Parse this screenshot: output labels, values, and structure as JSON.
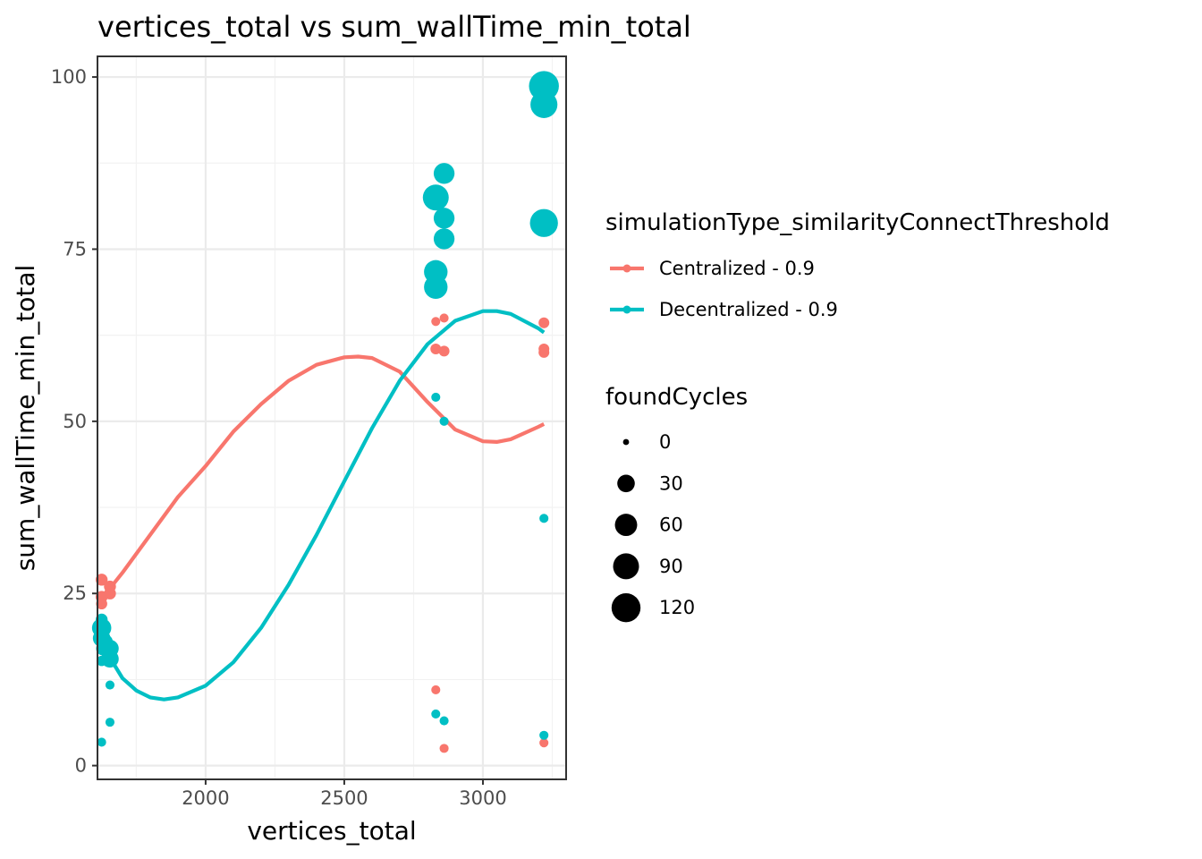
{
  "chart_data": {
    "type": "scatter",
    "title": "vertices_total  vs  sum_wallTime_min_total",
    "xlabel": "vertices_total",
    "ylabel": "sum_wallTime_min_total",
    "xlim": [
      1610,
      3300
    ],
    "ylim": [
      -2,
      103
    ],
    "x_ticks": [
      2000,
      2500,
      3000
    ],
    "y_ticks": [
      0,
      25,
      50,
      75,
      100
    ],
    "grid": true,
    "legend_position": "right",
    "color_legend_title": "simulationType_similarityConnectThreshold",
    "size_legend_title": "foundCycles",
    "size_legend": [
      {
        "value": 0,
        "label": "0"
      },
      {
        "value": 30,
        "label": "30"
      },
      {
        "value": 60,
        "label": "60"
      },
      {
        "value": 90,
        "label": "90"
      },
      {
        "value": 120,
        "label": "120"
      }
    ],
    "series": [
      {
        "name": "Centralized - 0.9",
        "color": "#F8766D",
        "points": [
          {
            "x": 1625,
            "y": 27.0,
            "size": 8
          },
          {
            "x": 1625,
            "y": 24.5,
            "size": 8
          },
          {
            "x": 1625,
            "y": 23.5,
            "size": 6
          },
          {
            "x": 1625,
            "y": 21.0,
            "size": 6
          },
          {
            "x": 1655,
            "y": 26.0,
            "size": 8
          },
          {
            "x": 1655,
            "y": 25.0,
            "size": 8
          },
          {
            "x": 2830,
            "y": 64.5,
            "size": 2
          },
          {
            "x": 2860,
            "y": 65.0,
            "size": 2
          },
          {
            "x": 2830,
            "y": 60.5,
            "size": 5
          },
          {
            "x": 2860,
            "y": 60.2,
            "size": 5
          },
          {
            "x": 2830,
            "y": 11.0,
            "size": 2
          },
          {
            "x": 2860,
            "y": 2.5,
            "size": 2
          },
          {
            "x": 3220,
            "y": 64.3,
            "size": 5
          },
          {
            "x": 3220,
            "y": 60.5,
            "size": 5
          },
          {
            "x": 3220,
            "y": 60.0,
            "size": 5
          },
          {
            "x": 3220,
            "y": 3.3,
            "size": 2
          }
        ],
        "trend": [
          {
            "x": 1650,
            "y": 25.5
          },
          {
            "x": 1700,
            "y": 28.0
          },
          {
            "x": 1800,
            "y": 33.5
          },
          {
            "x": 1900,
            "y": 39.0
          },
          {
            "x": 2000,
            "y": 43.5
          },
          {
            "x": 2100,
            "y": 48.5
          },
          {
            "x": 2200,
            "y": 52.5
          },
          {
            "x": 2300,
            "y": 55.9
          },
          {
            "x": 2400,
            "y": 58.2
          },
          {
            "x": 2500,
            "y": 59.3
          },
          {
            "x": 2550,
            "y": 59.4
          },
          {
            "x": 2600,
            "y": 59.2
          },
          {
            "x": 2700,
            "y": 57.2
          },
          {
            "x": 2800,
            "y": 52.8
          },
          {
            "x": 2900,
            "y": 48.8
          },
          {
            "x": 3000,
            "y": 47.1
          },
          {
            "x": 3050,
            "y": 47.0
          },
          {
            "x": 3100,
            "y": 47.4
          },
          {
            "x": 3200,
            "y": 49.2
          },
          {
            "x": 3220,
            "y": 49.6
          }
        ]
      },
      {
        "name": "Decentralized - 0.9",
        "color": "#00BFC4",
        "points": [
          {
            "x": 1625,
            "y": 21.2,
            "size": 8
          },
          {
            "x": 1625,
            "y": 20.0,
            "size": 40
          },
          {
            "x": 1625,
            "y": 18.5,
            "size": 30
          },
          {
            "x": 1630,
            "y": 17.0,
            "size": 14
          },
          {
            "x": 1640,
            "y": 18.0,
            "size": 14
          },
          {
            "x": 1655,
            "y": 17.0,
            "size": 30
          },
          {
            "x": 1655,
            "y": 15.5,
            "size": 30
          },
          {
            "x": 1625,
            "y": 15.2,
            "size": 4
          },
          {
            "x": 1655,
            "y": 11.7,
            "size": 2
          },
          {
            "x": 1655,
            "y": 6.3,
            "size": 2
          },
          {
            "x": 1625,
            "y": 3.4,
            "size": 2
          },
          {
            "x": 2830,
            "y": 82.5,
            "size": 90
          },
          {
            "x": 2860,
            "y": 86.0,
            "size": 50
          },
          {
            "x": 2860,
            "y": 79.5,
            "size": 50
          },
          {
            "x": 2860,
            "y": 76.5,
            "size": 50
          },
          {
            "x": 2830,
            "y": 71.7,
            "size": 70
          },
          {
            "x": 2830,
            "y": 69.5,
            "size": 70
          },
          {
            "x": 2830,
            "y": 53.5,
            "size": 2
          },
          {
            "x": 2860,
            "y": 50.0,
            "size": 2
          },
          {
            "x": 2830,
            "y": 7.5,
            "size": 2
          },
          {
            "x": 2860,
            "y": 6.5,
            "size": 2
          },
          {
            "x": 3220,
            "y": 98.7,
            "size": 130
          },
          {
            "x": 3220,
            "y": 96.0,
            "size": 100
          },
          {
            "x": 3220,
            "y": 78.8,
            "size": 110
          },
          {
            "x": 3220,
            "y": 35.9,
            "size": 2
          },
          {
            "x": 3220,
            "y": 4.4,
            "size": 2
          }
        ],
        "trend": [
          {
            "x": 1650,
            "y": 16.0
          },
          {
            "x": 1700,
            "y": 12.7
          },
          {
            "x": 1750,
            "y": 10.9
          },
          {
            "x": 1800,
            "y": 9.9
          },
          {
            "x": 1850,
            "y": 9.6
          },
          {
            "x": 1900,
            "y": 9.9
          },
          {
            "x": 2000,
            "y": 11.6
          },
          {
            "x": 2100,
            "y": 15.0
          },
          {
            "x": 2200,
            "y": 20.0
          },
          {
            "x": 2300,
            "y": 26.3
          },
          {
            "x": 2400,
            "y": 33.5
          },
          {
            "x": 2500,
            "y": 41.3
          },
          {
            "x": 2600,
            "y": 49.0
          },
          {
            "x": 2700,
            "y": 55.9
          },
          {
            "x": 2800,
            "y": 61.2
          },
          {
            "x": 2900,
            "y": 64.6
          },
          {
            "x": 3000,
            "y": 66.0
          },
          {
            "x": 3050,
            "y": 66.0
          },
          {
            "x": 3100,
            "y": 65.6
          },
          {
            "x": 3200,
            "y": 63.5
          },
          {
            "x": 3220,
            "y": 62.9
          }
        ]
      }
    ]
  }
}
